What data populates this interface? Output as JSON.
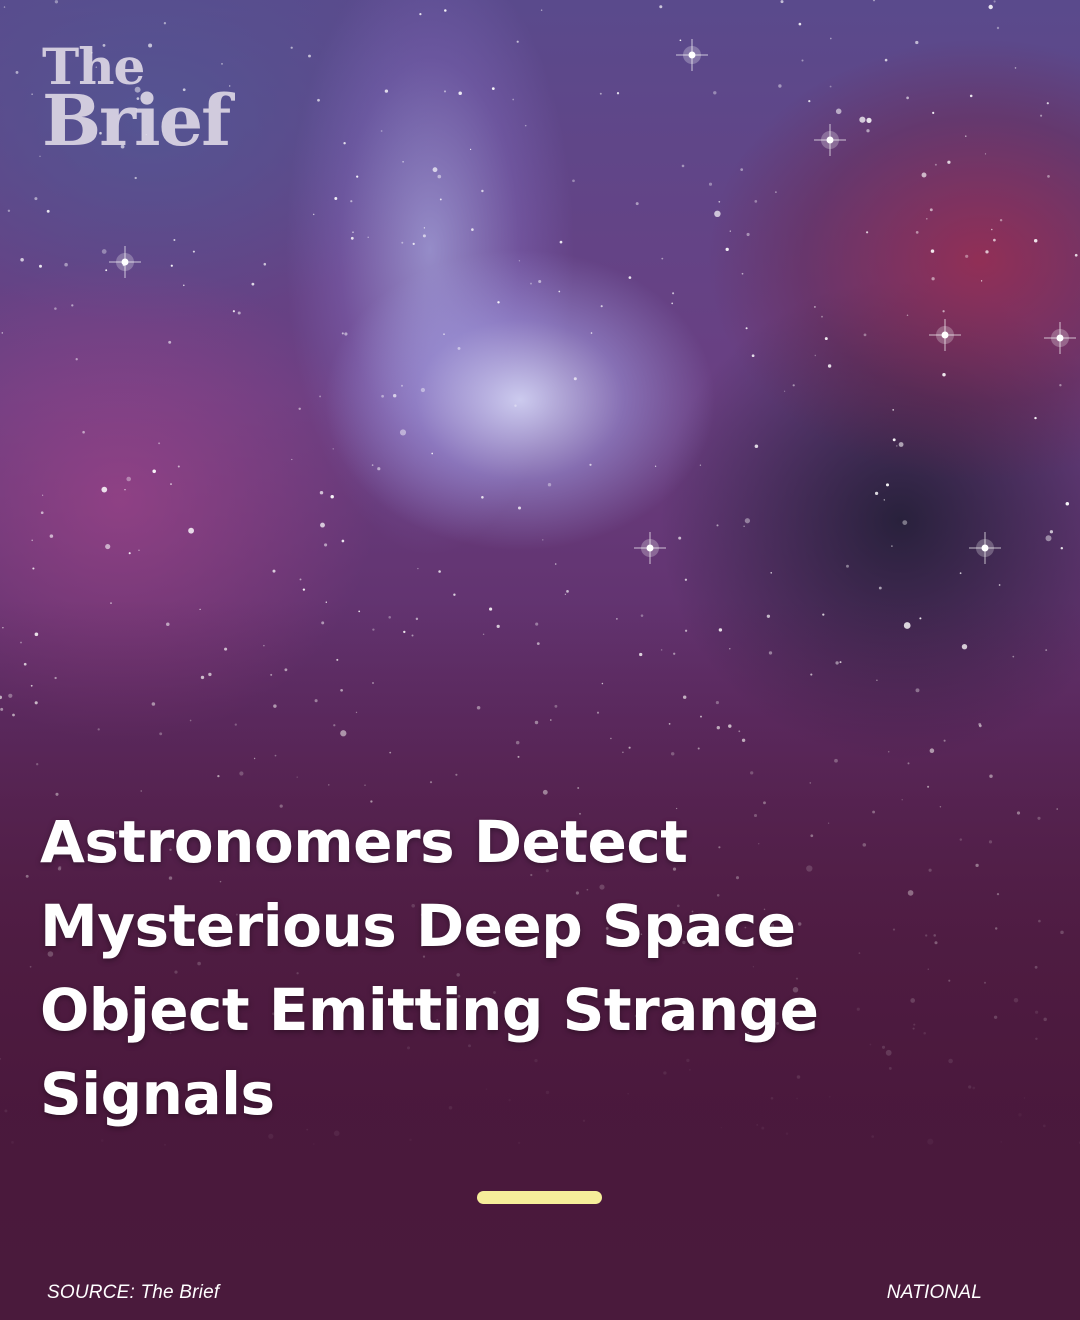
{
  "brand": {
    "logo_line1": "The",
    "logo_line2": "Brief"
  },
  "article": {
    "headline_lines": [
      "Astronomers Detect",
      "Mysterious Deep Space",
      "Object Emitting Strange",
      "Signals"
    ]
  },
  "footer": {
    "source": "SOURCE: The Brief",
    "category": "NATIONAL"
  },
  "colors": {
    "accent": "#f6ee9a",
    "background": "#4a1a3c"
  }
}
